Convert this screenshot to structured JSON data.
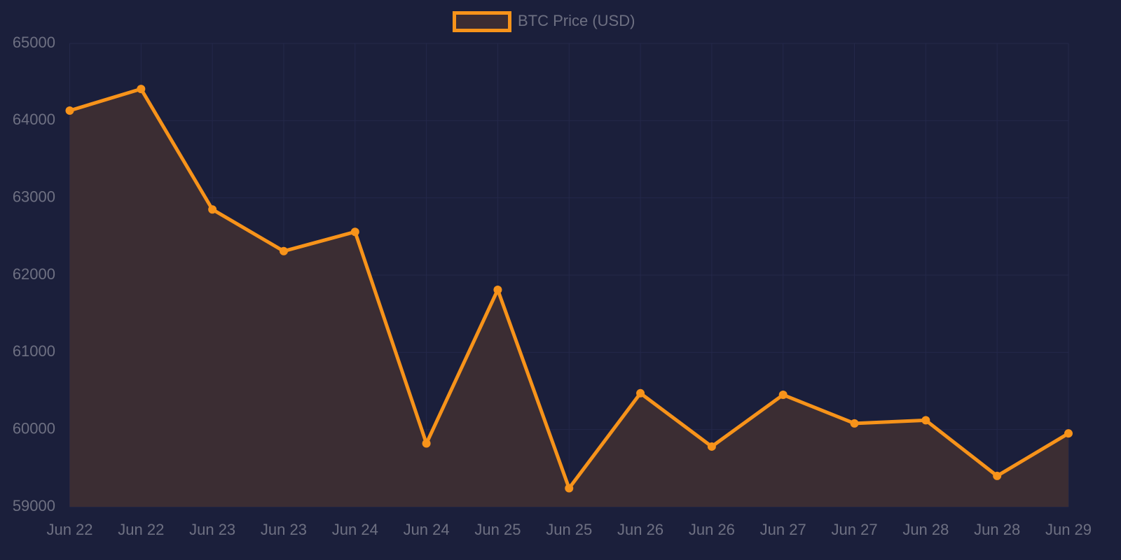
{
  "chart_data": {
    "type": "line",
    "categories": [
      "Jun 22",
      "Jun 22",
      "Jun 23",
      "Jun 23",
      "Jun 24",
      "Jun 24",
      "Jun 25",
      "Jun 25",
      "Jun 26",
      "Jun 26",
      "Jun 27",
      "Jun 27",
      "Jun 28",
      "Jun 28",
      "Jun 29"
    ],
    "series": [
      {
        "name": "BTC Price (USD)",
        "color": "#f7931a",
        "fill": "#3b2d33",
        "values": [
          64130,
          64410,
          62850,
          62310,
          62560,
          59820,
          61810,
          59240,
          60470,
          59780,
          60450,
          60080,
          60120,
          59400,
          59950
        ]
      }
    ],
    "ylim": [
      59000,
      65000
    ],
    "yticks": [
      59000,
      60000,
      61000,
      62000,
      63000,
      64000,
      65000
    ],
    "grid": true,
    "legend": "top"
  }
}
